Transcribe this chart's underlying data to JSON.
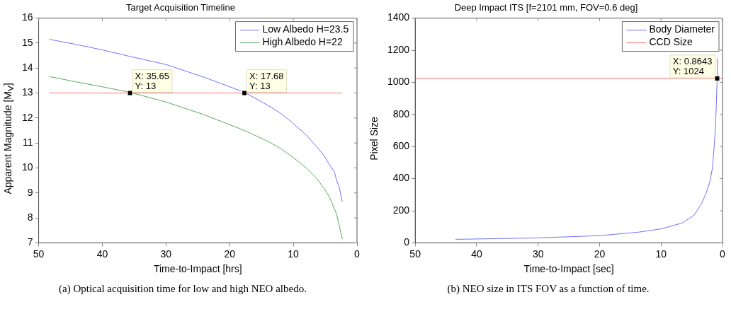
{
  "chart_data": [
    {
      "type": "line",
      "title": "Target Acquisition Timeline",
      "xlabel": "Time-to-Impact [hrs]",
      "ylabel": "Apparent Magnitude [M$_{V}$]",
      "xlim": [
        50,
        0
      ],
      "xticks": [
        50,
        40,
        30,
        20,
        10,
        0
      ],
      "ylim": [
        7,
        16
      ],
      "yticks": [
        7,
        8,
        9,
        10,
        11,
        12,
        13,
        14,
        15,
        16
      ],
      "grid": false,
      "legend": "top right",
      "marker": "none",
      "line_style": "solid",
      "series": [
        {
          "name": "Low Albedo H=23.5",
          "color": "#7070ff",
          "x": [
            48.33,
            44.2,
            40.04,
            36.25,
            30,
            24.1,
            17.68,
            13.94,
            11.95,
            9.96,
            7.97,
            6.37,
            5.18,
            4.38,
            3.59,
            3.19,
            2.79,
            2.31
          ],
          "values": [
            15.15,
            14.95,
            14.73,
            14.5,
            14.14,
            13.64,
            13.03,
            12.5,
            12.18,
            11.77,
            11.32,
            10.86,
            10.5,
            10.14,
            9.86,
            9.5,
            9.23,
            8.65
          ]
        },
        {
          "name": "High Albedo H=22",
          "color": "#5aaa5a",
          "x": [
            48.33,
            44.2,
            40.04,
            35.7,
            30,
            24.1,
            17.68,
            13.94,
            11.95,
            9.96,
            7.97,
            6.37,
            5.18,
            4.38,
            3.19,
            2.31
          ],
          "values": [
            13.66,
            13.45,
            13.25,
            13.03,
            12.64,
            12.14,
            11.5,
            11.06,
            10.77,
            10.41,
            10.0,
            9.59,
            9.18,
            8.86,
            8.14,
            7.15
          ]
        },
        {
          "color": "#ff7070",
          "x": [
            48.33,
            2.31
          ],
          "values": [
            13,
            13
          ]
        }
      ],
      "annotations": [
        {
          "text": "X: 35.65\nY: 13",
          "x": 35.65,
          "y": 13
        },
        {
          "text": "X: 17.68\nY: 13",
          "x": 17.68,
          "y": 13
        },
        "(a)  Optical acquisition time for low and high NEO albedo."
      ]
    },
    {
      "type": "line",
      "title": "Deep Impact ITS [f=2101 mm, FOV=0.6 deg]",
      "xlabel": "Time-to-Impact [sec]",
      "ylabel": "Pixel Size",
      "xlim": [
        50,
        0
      ],
      "xticks": [
        50,
        40,
        30,
        20,
        10,
        0
      ],
      "ylim": [
        0,
        1400
      ],
      "yticks": [
        0,
        200,
        400,
        600,
        800,
        1000,
        1200,
        1400
      ],
      "grid": false,
      "legend": "top right",
      "marker": "none",
      "line_style": "solid",
      "series": [
        {
          "name": "Body Diameter",
          "color": "#7070ff",
          "x": [
            43.43,
            40.05,
            30,
            20.02,
            13.77,
            10.03,
            6.6,
            4.62,
            3.42,
            2.63,
            2.03,
            1.63,
            1.23,
            1.11,
            0.8643,
            0.8
          ],
          "values": [
            22,
            24,
            31,
            45,
            66,
            87,
            123,
            172,
            243,
            313,
            384,
            469,
            666,
            750,
            1024,
            1150
          ]
        },
        {
          "name": "CCD Size",
          "color": "#ff7070",
          "x": [
            50,
            0
          ],
          "values": [
            1024,
            1024
          ]
        }
      ],
      "annotations": [
        {
          "text": "X: 0.8643\nY: 1024",
          "x": 0.8643,
          "y": 1024
        },
        "(b)  NEO size in ITS FOV as a function of time."
      ]
    }
  ]
}
